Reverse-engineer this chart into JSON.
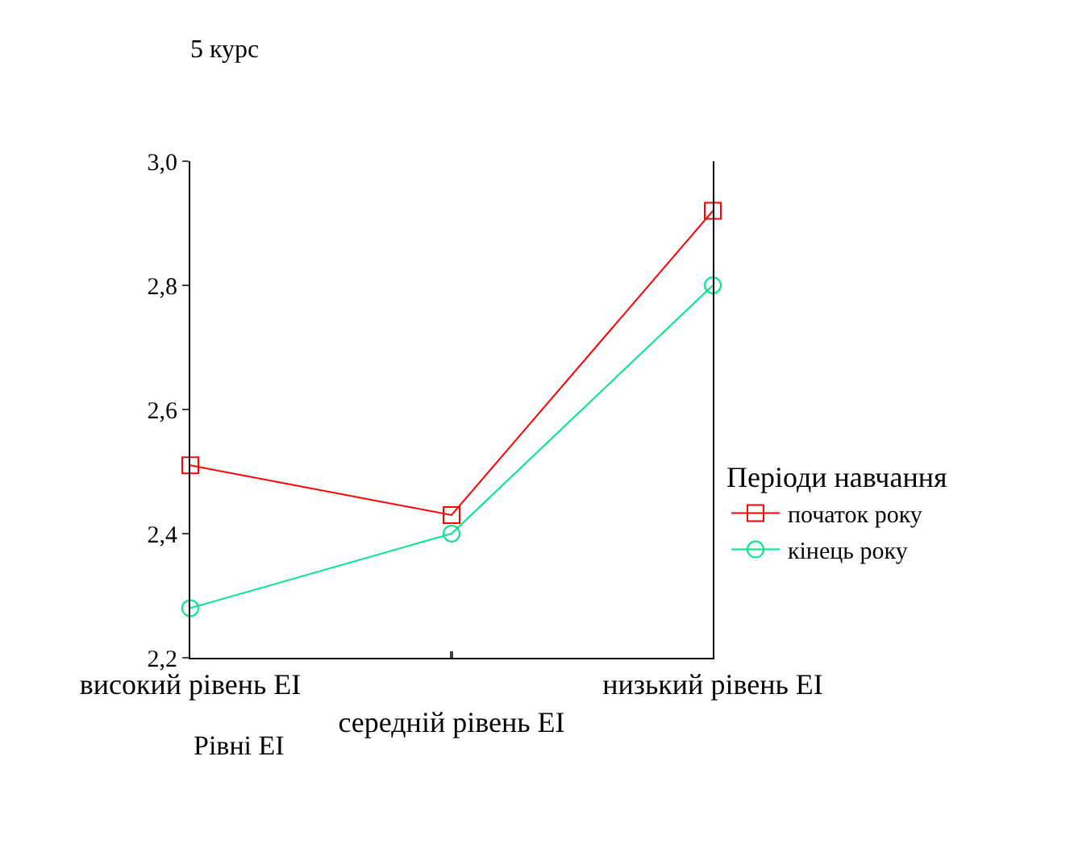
{
  "chart_data": {
    "type": "line",
    "title": "5 курс",
    "xlabel": "Рівні EI",
    "legend_title": "Періоди навчання",
    "categories": [
      "високий рівень EI",
      "середній рівень EI",
      "низький рівень EI"
    ],
    "series": [
      {
        "name": "початок року",
        "color": "#ff0000",
        "marker": "square",
        "values": [
          2.51,
          2.43,
          2.92
        ]
      },
      {
        "name": "кінець року",
        "color": "#00e68a",
        "marker": "circle",
        "values": [
          2.28,
          2.4,
          2.8
        ]
      }
    ],
    "ylim": [
      2.2,
      3.0
    ],
    "yticks": [
      {
        "value": 2.2,
        "label": "2,2"
      },
      {
        "value": 2.4,
        "label": "2,4"
      },
      {
        "value": 2.6,
        "label": "2,6"
      },
      {
        "value": 2.8,
        "label": "2,8"
      },
      {
        "value": 3.0,
        "label": "3,0"
      }
    ],
    "legend": "right",
    "line_style": "solid"
  }
}
